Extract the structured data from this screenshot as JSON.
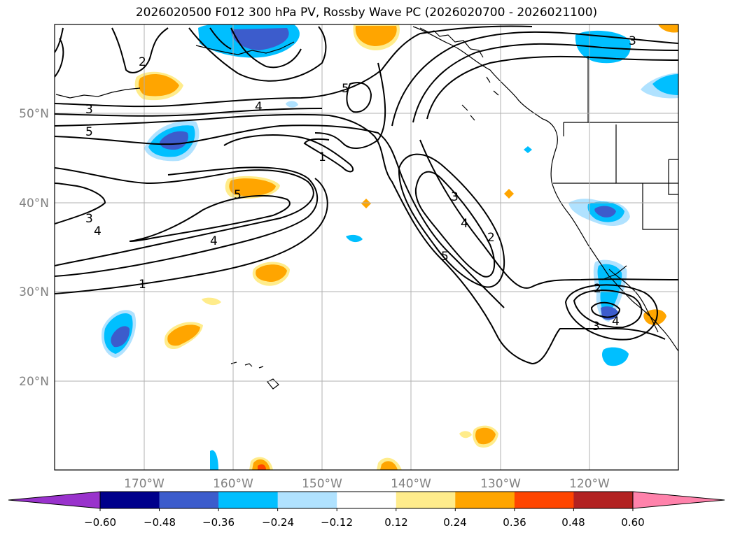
{
  "title": "2026020500 F012 300 hPa PV, Rossby Wave PC (2026020700 - 2026021100)",
  "axes": {
    "lat_labels": [
      "50°N",
      "40°N",
      "30°N",
      "20°N"
    ],
    "lon_labels": [
      "170°W",
      "160°W",
      "150°W",
      "140°W",
      "130°W",
      "120°W"
    ]
  },
  "colorbar": {
    "ticks": [
      "−0.60",
      "−0.48",
      "−0.36",
      "−0.24",
      "−0.12",
      "0.12",
      "0.24",
      "0.36",
      "0.48",
      "0.60"
    ],
    "colors": [
      "#9932cc",
      "#00008b",
      "#3c5ccc",
      "#00bfff",
      "#b0e2ff",
      "#ffffff",
      "#ffec8b",
      "#ffa500",
      "#ff4500",
      "#b22222",
      "#ff82ab"
    ]
  },
  "contour_labels": [
    "2",
    "3",
    "5",
    "4",
    "5",
    "1",
    "5",
    "3",
    "4",
    "4",
    "1",
    "3",
    "4",
    "2",
    "5",
    "2",
    "3",
    "4",
    "3"
  ],
  "shading": {
    "negative_colors": [
      "#b0e2ff",
      "#00bfff",
      "#3c5ccc"
    ],
    "positive_colors": [
      "#ffec8b",
      "#ffa500",
      "#ff4500"
    ]
  }
}
